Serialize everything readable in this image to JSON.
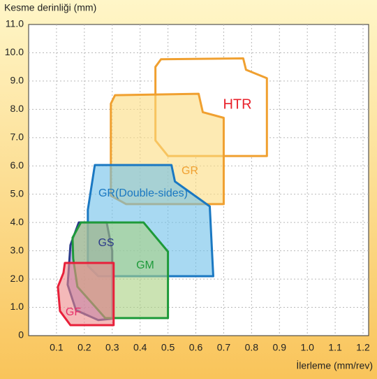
{
  "chart_data": {
    "type": "region",
    "y_label": "Kesme derinliği (mm)",
    "x_label": "İlerleme (mm/rev)",
    "xlim": [
      0,
      1.22
    ],
    "ylim": [
      0,
      11
    ],
    "xticks": [
      0.1,
      0.2,
      0.3,
      0.4,
      0.5,
      0.6,
      0.7,
      0.8,
      0.9,
      {
        "value": 1,
        "label": "1.0"
      },
      1.1,
      1.2
    ],
    "yticks": [
      0,
      {
        "value": 1,
        "label": "1.0"
      },
      {
        "value": 2,
        "label": "2.0"
      },
      {
        "value": 3,
        "label": "3.0"
      },
      {
        "value": 4,
        "label": "4.0"
      },
      {
        "value": 5,
        "label": "5.0"
      },
      {
        "value": 6,
        "label": "6.0"
      },
      {
        "value": 7,
        "label": "7.0"
      },
      {
        "value": 8,
        "label": "8.0"
      },
      {
        "value": 9,
        "label": "9.0"
      },
      {
        "value": 10,
        "label": "10.0"
      },
      {
        "value": 11,
        "label": "11.0"
      }
    ],
    "grid": true,
    "series": [
      {
        "name": "HTR",
        "color": "#f0a030",
        "fill": "#ffffff",
        "label_color": "#e8202a",
        "x": [
          0.475,
          0.77,
          0.78,
          0.855,
          0.855,
          0.5,
          0.455,
          0.455
        ],
        "values": [
          9.77,
          9.8,
          9.4,
          9.1,
          6.35,
          6.35,
          6.9,
          9.5
        ]
      },
      {
        "name": "GR",
        "color": "#f0a030",
        "fill": "#fbdc80",
        "label_color": "#f0a030",
        "x": [
          0.31,
          0.61,
          0.625,
          0.7,
          0.7,
          0.35,
          0.295,
          0.295
        ],
        "values": [
          8.5,
          8.55,
          7.9,
          7.7,
          4.65,
          4.65,
          4.95,
          8.2
        ]
      },
      {
        "name": "GR(Double-sides)",
        "color": "#1a78c2",
        "fill": "#6ec0ea",
        "label_color": "#1a78c2",
        "x": [
          0.2375,
          0.5125,
          0.525,
          0.65,
          0.6625,
          0.25,
          0.2125,
          0.2125
        ],
        "values": [
          6.03,
          6.03,
          5.45,
          4.57,
          2.1,
          2.1,
          2.47,
          4.45
        ]
      },
      {
        "name": "GS",
        "color": "#2b3a8a",
        "fill": "#8c7fcc",
        "label_color": "#2b3a8a",
        "x": [
          0.18,
          0.28,
          0.3,
          0.3,
          0.25,
          0.17,
          0.14,
          0.15
        ],
        "values": [
          4.0,
          4.0,
          3.0,
          0.6,
          0.55,
          0.9,
          1.8,
          3.2
        ]
      },
      {
        "name": "GM",
        "color": "#1e9a3a",
        "fill": "#a8d080",
        "label_color": "#1e9a3a",
        "x": [
          0.1875,
          0.4125,
          0.5,
          0.5,
          0.275,
          0.175,
          0.16,
          0.1575
        ],
        "values": [
          4.0,
          4.0,
          2.97,
          0.62,
          0.62,
          1.73,
          2.72,
          3.46
        ]
      },
      {
        "name": "GF",
        "color": "#e8203a",
        "fill": "#ec8a8a",
        "label_color": "#e8306a",
        "x": [
          0.13,
          0.305,
          0.305,
          0.15,
          0.1125,
          0.105,
          0.125
        ],
        "values": [
          2.57,
          2.57,
          0.37,
          0.37,
          0.87,
          1.73,
          2.22
        ]
      }
    ]
  }
}
